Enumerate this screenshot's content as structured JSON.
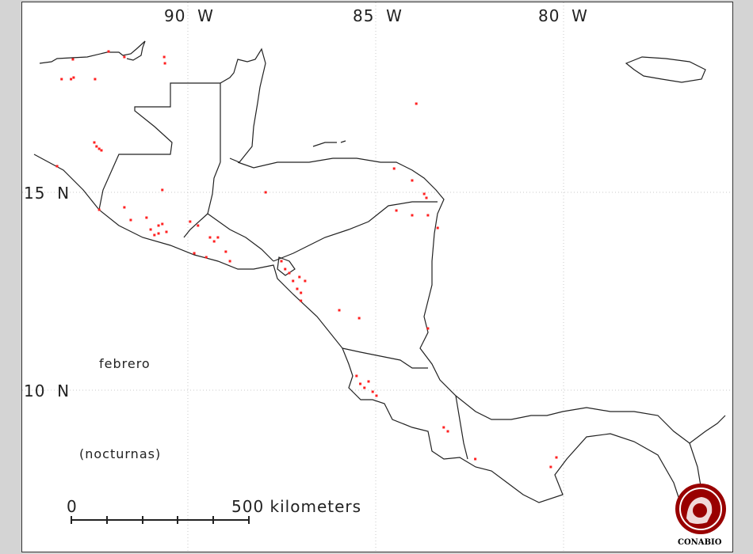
{
  "map": {
    "month_label": "febrero",
    "subtitle": "(nocturnas)",
    "longitude_labels": [
      "90  W",
      "85  W",
      "80  W"
    ],
    "latitude_labels": [
      "15  N",
      "10  N"
    ],
    "scale_bar": {
      "start_label": "0",
      "end_label": "500 kilometers"
    },
    "logo_text": "CONABIO",
    "colors": {
      "fire_points": "#ff2020",
      "coastline": "#222222",
      "grid": "#c8c8c8",
      "logo": "#990000"
    },
    "gridlines": {
      "longitudes": [
        -90,
        -85,
        -80
      ],
      "latitudes": [
        15,
        10
      ]
    },
    "fire_points_lonlat": [
      [
        -93.06,
        18.36
      ],
      [
        -93.36,
        17.86
      ],
      [
        -93.11,
        17.86
      ],
      [
        -93.04,
        17.9
      ],
      [
        -92.47,
        17.86
      ],
      [
        -92.11,
        18.56
      ],
      [
        -91.69,
        18.42
      ],
      [
        -90.63,
        18.42
      ],
      [
        -90.61,
        18.26
      ],
      [
        -92.49,
        16.26
      ],
      [
        -92.43,
        16.16
      ],
      [
        -92.36,
        16.1
      ],
      [
        -92.3,
        16.06
      ],
      [
        -93.48,
        15.66
      ],
      [
        -90.68,
        15.06
      ],
      [
        -92.36,
        14.56
      ],
      [
        -91.69,
        14.62
      ],
      [
        -91.52,
        14.3
      ],
      [
        -91.1,
        14.36
      ],
      [
        -90.99,
        14.06
      ],
      [
        -90.89,
        13.92
      ],
      [
        -90.78,
        13.96
      ],
      [
        -90.68,
        14.2
      ],
      [
        -90.57,
        14.0
      ],
      [
        -90.78,
        14.16
      ],
      [
        -89.94,
        14.26
      ],
      [
        -89.73,
        14.16
      ],
      [
        -89.41,
        13.86
      ],
      [
        -89.3,
        13.76
      ],
      [
        -89.2,
        13.86
      ],
      [
        -88.99,
        13.5
      ],
      [
        -88.88,
        13.26
      ],
      [
        -89.83,
        13.46
      ],
      [
        -89.51,
        13.36
      ],
      [
        -87.93,
        15.0
      ],
      [
        -87.51,
        13.26
      ],
      [
        -87.41,
        13.06
      ],
      [
        -87.3,
        12.96
      ],
      [
        -87.2,
        12.76
      ],
      [
        -87.09,
        12.56
      ],
      [
        -86.99,
        12.46
      ],
      [
        -87.03,
        12.86
      ],
      [
        -86.88,
        12.76
      ],
      [
        -86.99,
        12.26
      ],
      [
        -85.97,
        12.02
      ],
      [
        -85.44,
        11.82
      ],
      [
        -84.51,
        15.6
      ],
      [
        -84.03,
        15.3
      ],
      [
        -83.71,
        14.96
      ],
      [
        -83.65,
        14.86
      ],
      [
        -84.03,
        14.42
      ],
      [
        -83.61,
        14.42
      ],
      [
        -84.45,
        14.54
      ],
      [
        -83.35,
        14.1
      ],
      [
        -83.92,
        17.24
      ],
      [
        -83.61,
        11.56
      ],
      [
        -85.51,
        10.36
      ],
      [
        -85.41,
        10.16
      ],
      [
        -85.19,
        10.22
      ],
      [
        -85.08,
        9.96
      ],
      [
        -84.98,
        9.86
      ],
      [
        -85.3,
        10.06
      ],
      [
        -83.19,
        9.06
      ],
      [
        -83.08,
        8.96
      ],
      [
        -82.35,
        8.26
      ],
      [
        -80.19,
        8.3
      ],
      [
        -80.34,
        8.06
      ]
    ]
  }
}
